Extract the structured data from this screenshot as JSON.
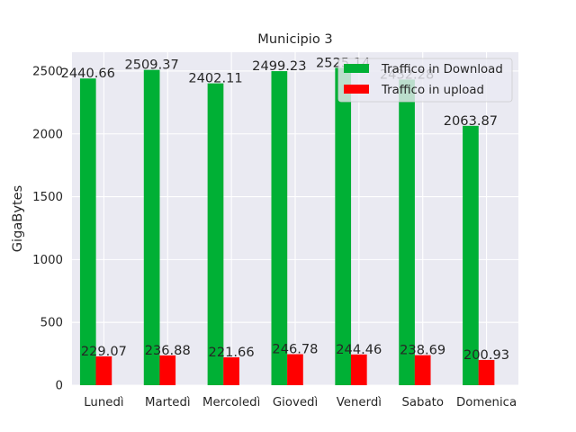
{
  "chart_data": {
    "type": "bar",
    "title": "Municipio 3",
    "xlabel": "",
    "ylabel": "GigaBytes",
    "categories": [
      "Lunedì",
      "Martedì",
      "Mercoledì",
      "Giovedì",
      "Venerdì",
      "Sabato",
      "Domenica"
    ],
    "series": [
      {
        "name": "Traffico in Download",
        "color": "#00b035",
        "values": [
          2440.66,
          2509.37,
          2402.11,
          2499.23,
          2525.14,
          2432.28,
          2063.87
        ],
        "labels": [
          "2440.66",
          "2509.37",
          "2402.11",
          "2499.23",
          "2525.14",
          "2432.28",
          "2063.87"
        ]
      },
      {
        "name": "Traffico in upload",
        "color": "#ff0000",
        "values": [
          229.07,
          236.88,
          221.66,
          246.78,
          244.46,
          238.69,
          200.93
        ],
        "labels": [
          "229.07",
          "236.88",
          "221.66",
          "246.78",
          "244.46",
          "238.69",
          "200.93"
        ]
      }
    ],
    "ylim": [
      0,
      2650
    ],
    "yticks": [
      0,
      500,
      1000,
      1500,
      2000,
      2500
    ],
    "grid": true,
    "legend": "top-right",
    "background": "#eaeaf2"
  }
}
